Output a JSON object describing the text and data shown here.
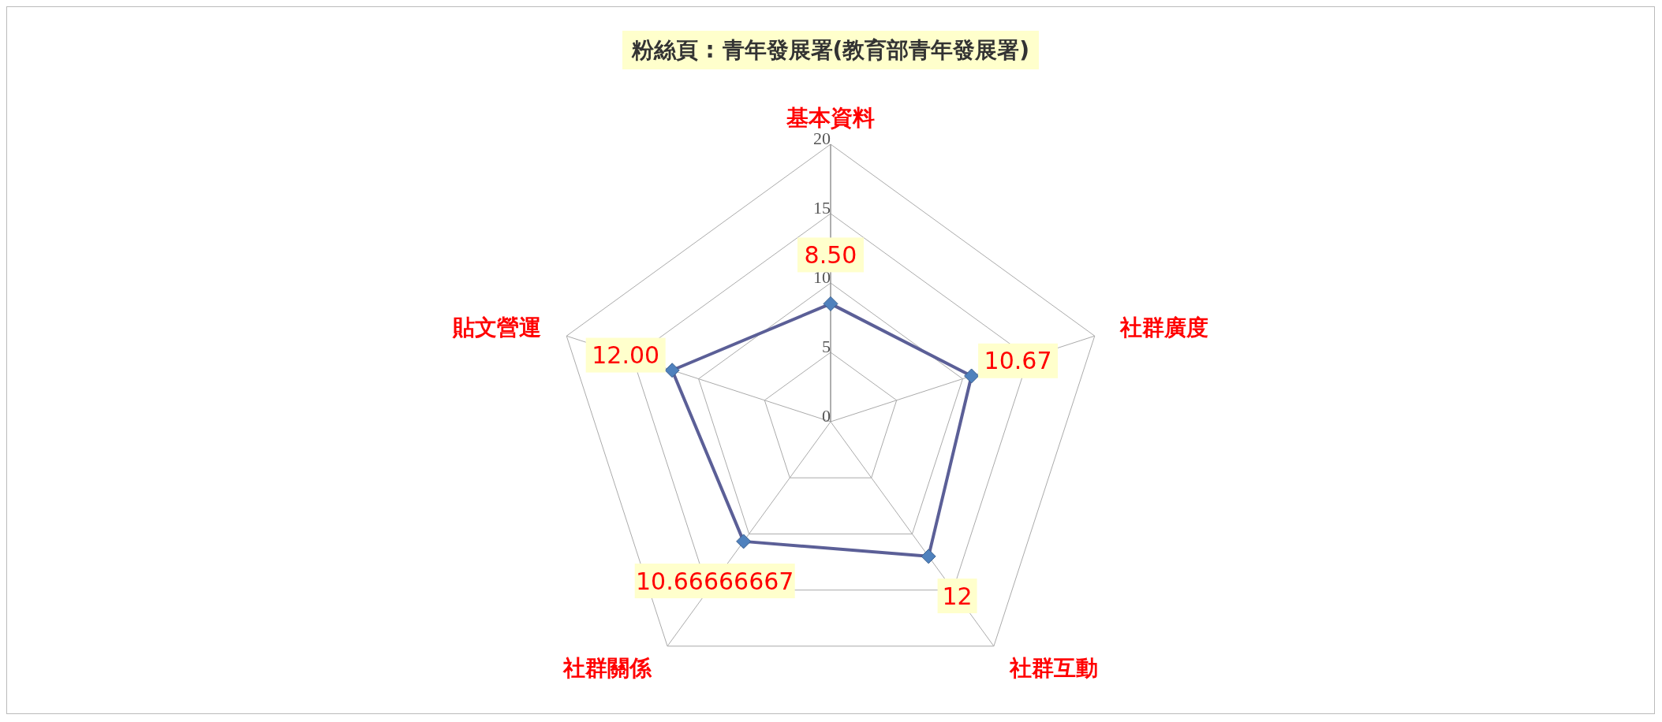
{
  "chart_data": {
    "type": "radar",
    "title": "粉絲頁 : 青年發展署(教育部青年發展署)",
    "categories": [
      "基本資料",
      "社群廣度",
      "社群互動",
      "社群關係",
      "貼文營運"
    ],
    "series": [
      {
        "color": "#5b5f97",
        "values": [
          8.5,
          10.67,
          12,
          10.66666667,
          12
        ],
        "value_labels": [
          "8.50",
          "10.67",
          "12",
          "10.66666667",
          "12.00"
        ]
      }
    ],
    "ylim": [
      0,
      20
    ],
    "yticks": [
      0,
      5,
      10,
      15,
      20
    ],
    "grid": true,
    "marker": "diamond",
    "line_style": "solid"
  }
}
